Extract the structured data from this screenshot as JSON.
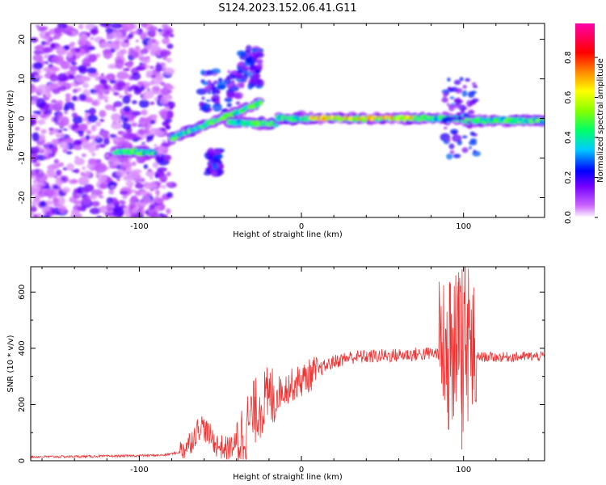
{
  "title": "S124.2023.152.06.41.G11",
  "chart_data": [
    {
      "type": "heatmap",
      "xlabel": "Height of straight line (km)",
      "ylabel": "Frequency (Hz)",
      "xlim": [
        -167,
        150
      ],
      "ylim": [
        -25,
        24
      ],
      "xticks": [
        -100,
        0,
        100
      ],
      "yticks": [
        -20,
        -10,
        0,
        10,
        20
      ],
      "colorbar": {
        "label": "Normalized spectral amplitude",
        "lim": [
          0,
          0.97
        ],
        "ticks": [
          0.0,
          0.2,
          0.4,
          0.6,
          0.8
        ],
        "tick_labels": [
          "0.0",
          "0.2",
          "0.4",
          "0.6",
          "0.8"
        ],
        "colors": [
          "#ffffff",
          "#cc66ff",
          "#7700ff",
          "#0000ff",
          "#00ccff",
          "#00ff66",
          "#88ff00",
          "#ffff00",
          "#ff8800",
          "#ff0000",
          "#ff00aa"
        ]
      },
      "features": [
        {
          "name": "noise",
          "x": [
            -167,
            -80
          ],
          "y": [
            -25,
            24
          ]
        },
        {
          "name": "stream",
          "x": [
            -115,
            -90
          ],
          "y": [
            -8.5,
            -8.5
          ]
        },
        {
          "name": "stream",
          "x": [
            -80,
            -25
          ],
          "y": [
            -5,
            4
          ]
        },
        {
          "name": "stream",
          "x": [
            -45,
            -15
          ],
          "y": [
            -1,
            -1.5
          ]
        },
        {
          "name": "stream",
          "x": [
            -15,
            100
          ],
          "y": [
            0,
            0
          ]
        },
        {
          "name": "stream",
          "x": [
            100,
            150
          ],
          "y": [
            -0.5,
            -0.5
          ]
        },
        {
          "name": "burst",
          "x": [
            -62,
            -38
          ],
          "y": [
            2,
            12
          ]
        },
        {
          "name": "burst",
          "x": [
            -38,
            -25
          ],
          "y": [
            8,
            18
          ]
        },
        {
          "name": "burst",
          "x": [
            -58,
            -50
          ],
          "y": [
            -14,
            -8
          ]
        },
        {
          "name": "burst",
          "x": [
            88,
            108
          ],
          "y": [
            -10,
            10
          ]
        }
      ]
    },
    {
      "type": "line",
      "xlabel": "Height of straight line (km)",
      "ylabel": "SNR (10 * v/v)",
      "xlim": [
        -167,
        150
      ],
      "ylim": [
        0,
        690
      ],
      "xticks": [
        -100,
        0,
        100
      ],
      "yticks": [
        0,
        200,
        400,
        600
      ],
      "color": "#ee3333",
      "profile": [
        [
          -167,
          14
        ],
        [
          -140,
          15
        ],
        [
          -110,
          17
        ],
        [
          -85,
          20
        ],
        [
          -75,
          30
        ],
        [
          -68,
          70
        ],
        [
          -62,
          130
        ],
        [
          -58,
          100
        ],
        [
          -52,
          55
        ],
        [
          -46,
          42
        ],
        [
          -40,
          60
        ],
        [
          -35,
          110
        ],
        [
          -30,
          165
        ],
        [
          -25,
          200
        ],
        [
          -20,
          220
        ],
        [
          -15,
          240
        ],
        [
          -10,
          258
        ],
        [
          -5,
          272
        ],
        [
          0,
          285
        ],
        [
          10,
          322
        ],
        [
          20,
          352
        ],
        [
          30,
          368
        ],
        [
          50,
          373
        ],
        [
          70,
          378
        ],
        [
          90,
          385
        ],
        [
          100,
          395
        ],
        [
          108,
          370
        ],
        [
          120,
          368
        ],
        [
          150,
          372
        ]
      ],
      "spikes": [
        {
          "x": 97,
          "y": 670
        },
        {
          "x": 101,
          "y": 690
        },
        {
          "x": 99,
          "y": 40
        },
        {
          "x": 92,
          "y": 630
        }
      ]
    }
  ]
}
